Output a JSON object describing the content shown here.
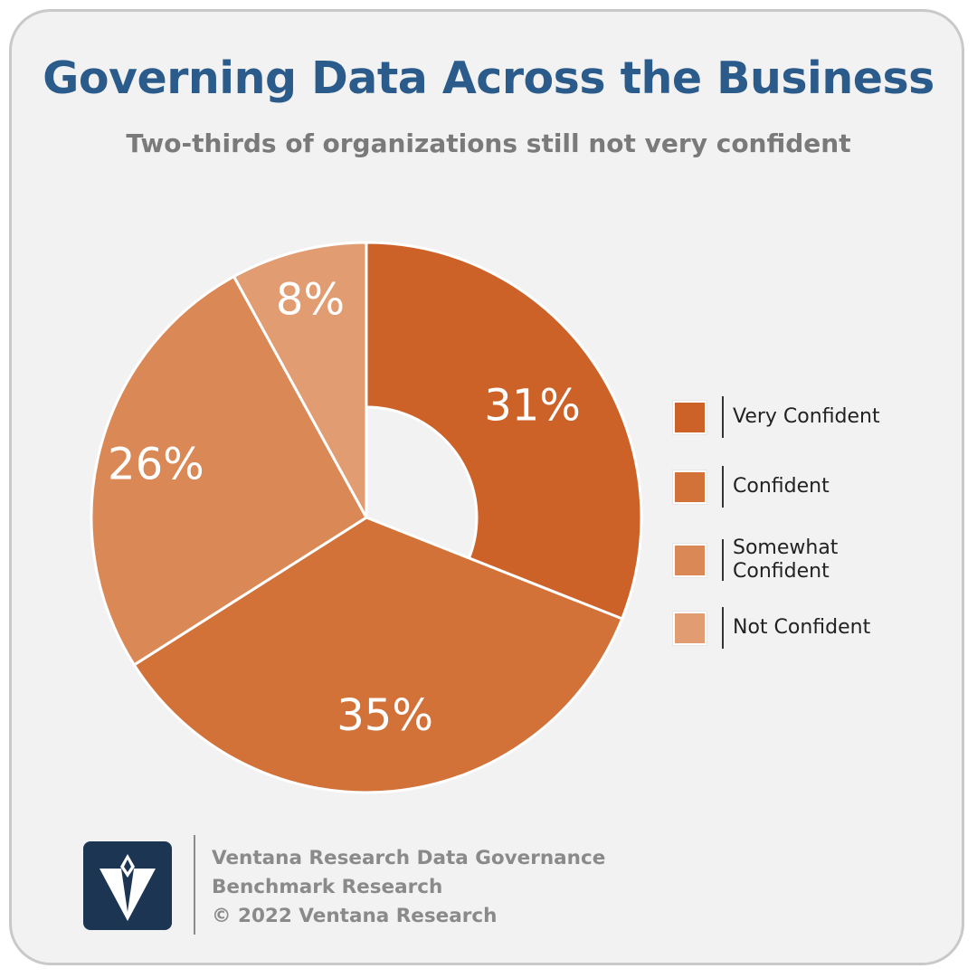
{
  "title": "Governing Data Across the Business",
  "subtitle": "Two-thirds of organizations still not very confident",
  "colors": {
    "title": "#2a5b8a",
    "subtitle": "#7a7a7a",
    "very_confident": "#cd6228",
    "confident": "#d27138",
    "somewhat_confident": "#da8855",
    "not_confident": "#e19c72",
    "donut_hole": "#f2f2f2",
    "logo_bg": "#1c3553"
  },
  "chart_data": {
    "type": "pie",
    "variant": "donut",
    "categories": [
      "Very Confident",
      "Confident",
      "Somewhat Confident",
      "Not Confident"
    ],
    "values": [
      31,
      35,
      26,
      8
    ],
    "value_labels": [
      "31%",
      "35%",
      "26%",
      "8%"
    ],
    "legend_position": "right"
  },
  "legend": {
    "items": [
      {
        "label": "Very Confident",
        "color": "#cd6228"
      },
      {
        "label": "Confident",
        "color": "#d27138"
      },
      {
        "label": "Somewhat\nConfident",
        "color": "#da8855"
      },
      {
        "label": "Not Confident",
        "color": "#e19c72"
      }
    ]
  },
  "footer": {
    "line1": "Ventana Research Data Governance",
    "line2": "Benchmark Research",
    "line3": "© 2022 Ventana Research",
    "logo_icon": "ventana-v-logo"
  }
}
